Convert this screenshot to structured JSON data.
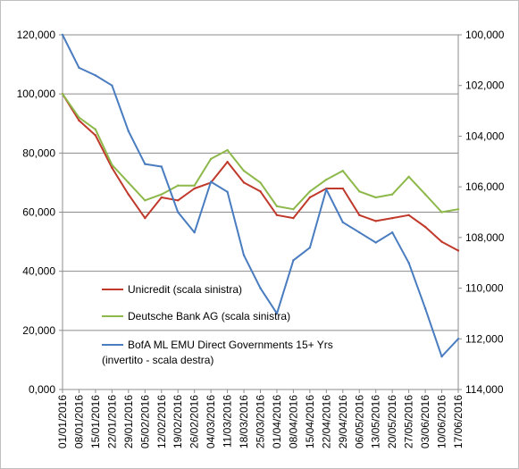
{
  "chart_data": {
    "type": "line",
    "title": "",
    "xlabel": "",
    "ylabel_left": "",
    "ylabel_right": "",
    "grid": "horizontal",
    "legend_position": "bottom-left",
    "x": [
      "01/01/2016",
      "08/01/2016",
      "15/01/2016",
      "22/01/2016",
      "29/01/2016",
      "05/02/2016",
      "12/02/2016",
      "19/02/2016",
      "26/02/2016",
      "04/03/2016",
      "11/03/2016",
      "18/03/2016",
      "25/03/2016",
      "01/04/2016",
      "08/04/2016",
      "15/04/2016",
      "22/04/2016",
      "29/04/2016",
      "06/05/2016",
      "13/05/2016",
      "20/05/2016",
      "27/05/2016",
      "03/06/2016",
      "10/06/2016",
      "17/06/2016"
    ],
    "left_axis": {
      "range": [
        0,
        120000
      ],
      "ticks": [
        0,
        20000,
        40000,
        60000,
        80000,
        100000,
        120000
      ],
      "tick_labels": [
        "0,000",
        "20,000",
        "40,000",
        "60,000",
        "80,000",
        "100,000",
        "120,000"
      ]
    },
    "right_axis": {
      "range": [
        100000,
        114000
      ],
      "inverted": true,
      "ticks": [
        100000,
        102000,
        104000,
        106000,
        108000,
        110000,
        112000,
        114000
      ],
      "tick_labels": [
        "100,000",
        "102,000",
        "104,000",
        "106,000",
        "108,000",
        "110,000",
        "112,000",
        "114,000"
      ]
    },
    "series": [
      {
        "name": "Unicredit (scala sinistra)",
        "axis": "left",
        "color": "#c0392b",
        "values": [
          100000,
          91000,
          86000,
          75000,
          66000,
          58000,
          65000,
          64000,
          68000,
          70000,
          77000,
          70000,
          67000,
          59000,
          58000,
          65000,
          68000,
          68000,
          59000,
          57000,
          58000,
          59000,
          55000,
          50000,
          47000
        ]
      },
      {
        "name": "Deutsche Bank AG (scala sinistra)",
        "axis": "left",
        "color": "#8db84a",
        "values": [
          100000,
          92000,
          88000,
          76000,
          70000,
          64000,
          66000,
          69000,
          69000,
          78000,
          81000,
          74000,
          70000,
          62000,
          61000,
          67000,
          71000,
          74000,
          67000,
          65000,
          66000,
          72000,
          66000,
          60000,
          61000
        ]
      },
      {
        "name": "BofA ML EMU Direct Governments 15+ Yrs",
        "name_line2": "(invertito - scala destra)",
        "axis": "right",
        "color": "#4a7cc0",
        "values": [
          100000,
          101300,
          101600,
          102000,
          103800,
          105100,
          105200,
          107000,
          107800,
          105800,
          106200,
          108700,
          110000,
          111000,
          108900,
          108400,
          106100,
          107400,
          107800,
          108200,
          107800,
          109000,
          110800,
          112700,
          112000
        ]
      }
    ]
  }
}
